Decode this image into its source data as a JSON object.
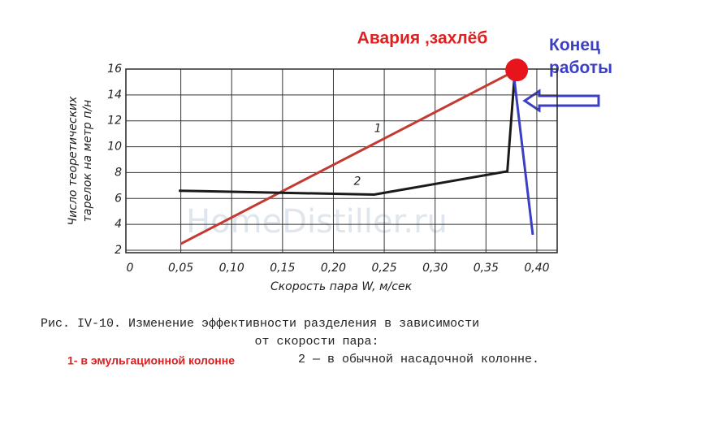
{
  "chart_data": {
    "type": "line",
    "y_label_lines": [
      "Число теоретических",
      "тарелок на метр п/н"
    ],
    "x_label": "Скорость пара  W, м/сек",
    "xlim": [
      0,
      0.42
    ],
    "ylim": [
      2,
      16
    ],
    "xticks": [
      0,
      {
        "value": 0.05,
        "label": "0,05"
      },
      {
        "value": 0.1,
        "label": "0,10"
      },
      {
        "value": 0.15,
        "label": "0,15"
      },
      {
        "value": 0.2,
        "label": "0,20"
      },
      {
        "value": 0.25,
        "label": "0,25"
      },
      {
        "value": 0.3,
        "label": "0,30"
      },
      {
        "value": 0.35,
        "label": "0,35"
      },
      {
        "value": 0.4,
        "label": "0,40"
      }
    ],
    "yticks": [
      2,
      4,
      6,
      8,
      10,
      12,
      14,
      16
    ],
    "grid": true,
    "series": [
      {
        "name": "1",
        "color": "#c23a32",
        "x": [
          0.05,
          0.377
        ],
        "values": [
          2.5,
          15.8
        ]
      },
      {
        "name": "2",
        "color": "#1a1a1a",
        "x": [
          0.048,
          0.24,
          0.371,
          0.378
        ],
        "values": [
          6.6,
          6.3,
          8.1,
          15.4
        ]
      },
      {
        "color": "#3b3fc4",
        "x": [
          0.378,
          0.396
        ],
        "values": [
          15.1,
          3.2
        ]
      }
    ],
    "annotations": {
      "crash": "Авария ,захлёб",
      "end": "Конец работы",
      "watermark": "HomeDistiller.ru"
    },
    "caption": {
      "line1": "Рис. IV-10. Изменение эффективности разделения в зависимости",
      "line2": "от скорости пара:",
      "item1": "1- в эмульгационной колонне",
      "item2": "2 — в обычной насадочной колонне."
    }
  }
}
